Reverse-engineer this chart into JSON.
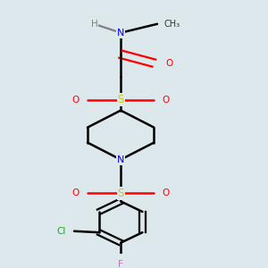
{
  "background_color": "#dce8ec",
  "atom_colors": {
    "C": "#000000",
    "H": "#808080",
    "N": "#0000ff",
    "O": "#ff0000",
    "S": "#cccc00",
    "Cl": "#00bb00",
    "F": "#ff44ff"
  },
  "bond_color": "#000000",
  "bond_width": 1.8,
  "figsize": [
    3.0,
    3.0
  ],
  "dpi": 100
}
